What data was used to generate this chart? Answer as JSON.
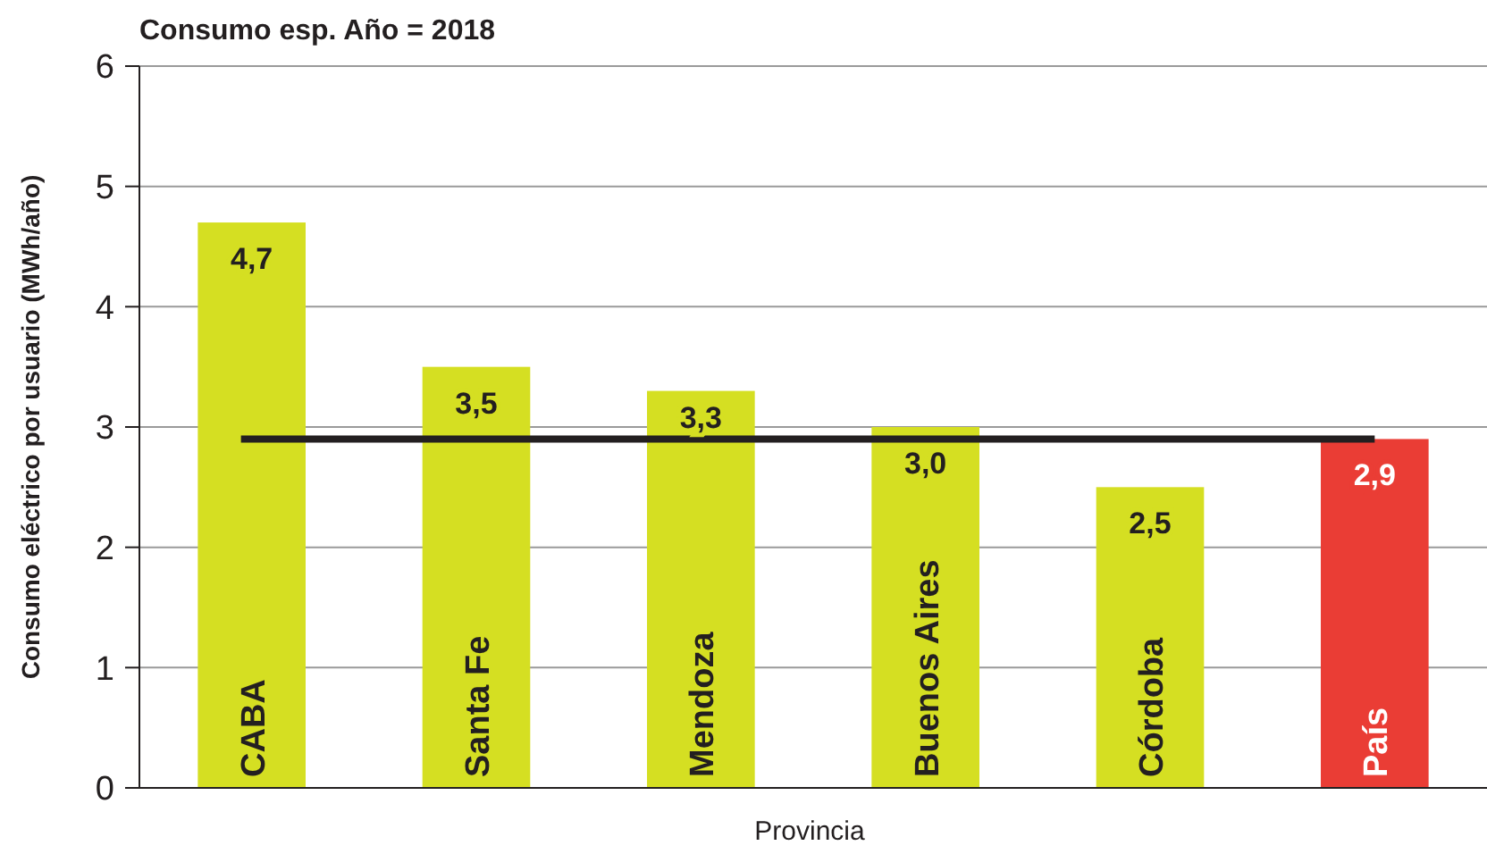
{
  "chart_data": {
    "type": "bar",
    "title": "Consumo esp. Año = 2018",
    "xlabel": "Provincia",
    "ylabel": "Consumo eléctrico por usuario (MWh/año)",
    "categories": [
      "CABA",
      "Santa Fe",
      "Mendoza",
      "Buenos Aires",
      "Córdoba",
      "País"
    ],
    "values": [
      4.7,
      3.5,
      3.3,
      3.0,
      2.5,
      2.9
    ],
    "value_labels": [
      "4,7",
      "3,5",
      "3,3",
      "3,0",
      "2,5",
      "2,9"
    ],
    "colors": [
      "#d5df22",
      "#d5df22",
      "#d5df22",
      "#d5df22",
      "#d5df22",
      "#ea3d35"
    ],
    "ylim": [
      0,
      6
    ],
    "yticks": [
      0,
      1,
      2,
      3,
      4,
      5,
      6
    ],
    "grid": "y",
    "ref_lines": [
      {
        "axis": "y",
        "value": 2.9,
        "color": "#231f20"
      }
    ]
  }
}
